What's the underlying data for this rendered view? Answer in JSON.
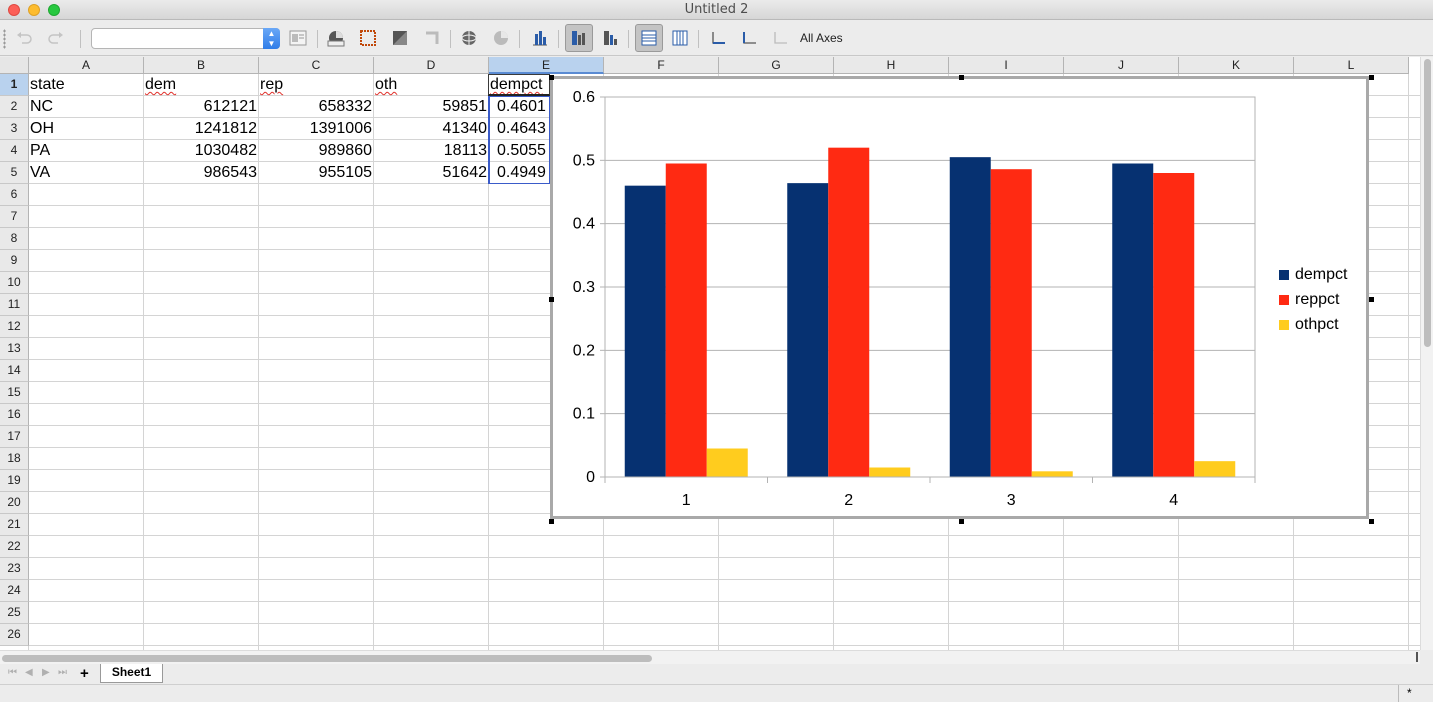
{
  "window": {
    "title": "Untitled 2"
  },
  "toolbar": {
    "element_select_value": "",
    "all_axes_label": "All Axes",
    "buttons": [
      "undo-icon",
      "redo-icon",
      "format-selection-icon",
      "chart-type-icon",
      "chart-area-icon",
      "chart-wall-icon",
      "chart-floor-icon",
      "3d-view-icon",
      "data-ranges-icon",
      "column-chart-icon",
      "data-in-rows-icon",
      "data-in-columns-icon",
      "horizontal-grids-icon",
      "vertical-grids-icon",
      "x-axis-icon",
      "y-axis-icon",
      "z-axis-icon"
    ]
  },
  "sheet": {
    "columns": [
      "A",
      "B",
      "C",
      "D",
      "E",
      "F",
      "G",
      "H",
      "I",
      "J",
      "K",
      "L"
    ],
    "rows": [
      "1",
      "2",
      "3",
      "4",
      "5",
      "6",
      "7",
      "8",
      "9",
      "10",
      "11",
      "12",
      "13",
      "14",
      "15",
      "16",
      "17",
      "18",
      "19",
      "20",
      "21",
      "22",
      "23",
      "24",
      "25",
      "26"
    ],
    "headers": [
      "state",
      "dem",
      "rep",
      "oth",
      "dempct"
    ],
    "data": [
      [
        "NC",
        "612121",
        "658332",
        "59851",
        "0.4601"
      ],
      [
        "OH",
        "1241812",
        "1391006",
        "41340",
        "0.4643"
      ],
      [
        "PA",
        "1030482",
        "989860",
        "18113",
        "0.5055"
      ],
      [
        "VA",
        "986543",
        "955105",
        "51642",
        "0.4949"
      ]
    ]
  },
  "chart_data": {
    "type": "bar",
    "categories": [
      "1",
      "2",
      "3",
      "4"
    ],
    "series": [
      {
        "name": "dempct",
        "values": [
          0.46,
          0.464,
          0.505,
          0.495
        ],
        "color": "#063171"
      },
      {
        "name": "reppct",
        "values": [
          0.495,
          0.52,
          0.486,
          0.48
        ],
        "color": "#ff2a12"
      },
      {
        "name": "othpct",
        "values": [
          0.045,
          0.015,
          0.009,
          0.025
        ],
        "color": "#ffcc1e"
      }
    ],
    "y_ticks": [
      "0",
      "0.1",
      "0.2",
      "0.3",
      "0.4",
      "0.5",
      "0.6"
    ],
    "ylim": [
      0,
      0.6
    ],
    "grid": true,
    "legend": "right"
  },
  "tabs": {
    "sheets": [
      "Sheet1"
    ],
    "add_label": "+"
  },
  "status": {
    "modified_indicator": "*"
  }
}
